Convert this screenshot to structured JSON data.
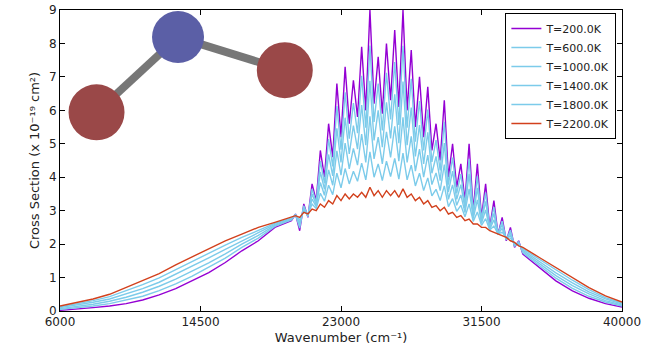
{
  "chart_data": {
    "type": "line",
    "x_label": "Wavenumber (cm⁻¹)",
    "y_label": "Cross Section (x 10⁻¹⁹ cm²)",
    "x": [
      6000,
      7000,
      8000,
      9000,
      10000,
      11000,
      12000,
      13000,
      14000,
      15000,
      16000,
      17000,
      18000,
      19000,
      20000,
      20250,
      20500,
      20750,
      21000,
      21250,
      21500,
      21750,
      22000,
      22250,
      22500,
      22750,
      23000,
      23250,
      23500,
      23750,
      24000,
      24250,
      24500,
      24750,
      25000,
      25250,
      25500,
      25750,
      26000,
      26250,
      26500,
      26750,
      27000,
      27250,
      27500,
      27750,
      28000,
      28250,
      28500,
      28750,
      29000,
      29250,
      29500,
      29750,
      30000,
      30250,
      30500,
      30750,
      31000,
      31250,
      31500,
      31750,
      32000,
      32250,
      32500,
      32750,
      33000,
      33250,
      33500,
      33750,
      34000,
      35000,
      36000,
      37000,
      38000,
      39000,
      40000
    ],
    "series": [
      {
        "name": "T=200.0K",
        "color": "#9400d3",
        "values": [
          0.02,
          0.05,
          0.1,
          0.15,
          0.22,
          0.33,
          0.48,
          0.67,
          0.9,
          1.15,
          1.45,
          1.8,
          2.1,
          2.5,
          2.7,
          2.9,
          2.4,
          3.2,
          2.8,
          3.8,
          3.3,
          4.8,
          4.0,
          5.6,
          4.6,
          6.8,
          5.2,
          7.3,
          5.6,
          6.9,
          5.8,
          7.9,
          6.0,
          9.0,
          6.2,
          7.6,
          5.9,
          8.0,
          6.3,
          8.4,
          6.1,
          9.0,
          6.0,
          7.8,
          5.5,
          7.0,
          5.2,
          6.7,
          4.8,
          5.6,
          4.5,
          6.3,
          4.0,
          5.0,
          3.7,
          4.4,
          3.3,
          5.0,
          3.0,
          4.4,
          2.8,
          3.8,
          2.5,
          3.3,
          2.3,
          2.8,
          2.1,
          2.5,
          1.9,
          2.1,
          1.7,
          1.3,
          0.9,
          0.6,
          0.38,
          0.22,
          0.12
        ]
      },
      {
        "name": "T=600.0K",
        "color": "#7ccbea",
        "values": [
          0.05,
          0.09,
          0.15,
          0.22,
          0.32,
          0.44,
          0.61,
          0.81,
          1.04,
          1.3,
          1.58,
          1.9,
          2.18,
          2.53,
          2.72,
          2.89,
          2.48,
          3.15,
          2.82,
          3.65,
          3.24,
          4.48,
          3.82,
          5.14,
          4.32,
          6.13,
          4.82,
          6.54,
          5.15,
          6.22,
          5.32,
          7.03,
          5.48,
          7.94,
          5.65,
          6.8,
          5.4,
          7.12,
          5.73,
          7.44,
          5.56,
          7.93,
          5.48,
          6.94,
          5.06,
          6.28,
          4.8,
          6.02,
          4.46,
          5.11,
          4.2,
          5.66,
          3.78,
          4.59,
          3.52,
          4.09,
          3.18,
          4.55,
          2.92,
          4.04,
          2.74,
          3.54,
          2.48,
          3.11,
          2.3,
          2.69,
          2.12,
          2.42,
          1.93,
          2.07,
          1.74,
          1.36,
          0.98,
          0.68,
          0.44,
          0.27,
          0.15
        ]
      },
      {
        "name": "T=1000.0K",
        "color": "#7ccbea",
        "values": [
          0.07,
          0.13,
          0.2,
          0.29,
          0.41,
          0.56,
          0.74,
          0.95,
          1.19,
          1.44,
          1.71,
          2.0,
          2.26,
          2.56,
          2.74,
          2.88,
          2.56,
          3.1,
          2.84,
          3.5,
          3.18,
          4.16,
          3.64,
          4.68,
          4.04,
          5.46,
          4.44,
          5.78,
          4.7,
          5.54,
          4.84,
          6.16,
          4.96,
          6.88,
          5.1,
          6.0,
          4.9,
          6.24,
          5.16,
          6.48,
          5.02,
          6.86,
          4.96,
          6.08,
          4.62,
          5.56,
          4.4,
          5.34,
          4.12,
          4.62,
          3.9,
          5.02,
          3.56,
          4.18,
          3.34,
          3.78,
          3.06,
          4.1,
          2.84,
          3.68,
          2.68,
          3.28,
          2.46,
          2.92,
          2.3,
          2.58,
          2.14,
          2.34,
          1.96,
          2.04,
          1.78,
          1.42,
          1.06,
          0.76,
          0.51,
          0.31,
          0.18
        ]
      },
      {
        "name": "T=1400.0K",
        "color": "#7ccbea",
        "values": [
          0.1,
          0.17,
          0.26,
          0.36,
          0.51,
          0.67,
          0.86,
          1.1,
          1.33,
          1.59,
          1.84,
          2.1,
          2.34,
          2.59,
          2.76,
          2.87,
          2.64,
          3.05,
          2.86,
          3.35,
          3.12,
          3.84,
          3.46,
          4.22,
          3.76,
          4.79,
          4.06,
          5.02,
          4.25,
          4.86,
          4.36,
          5.29,
          4.44,
          5.82,
          4.55,
          5.2,
          4.4,
          5.36,
          4.59,
          5.52,
          4.48,
          5.79,
          4.44,
          5.22,
          4.18,
          4.84,
          4.0,
          4.66,
          3.78,
          4.13,
          3.6,
          4.38,
          3.34,
          3.77,
          3.16,
          3.47,
          2.94,
          3.65,
          2.76,
          3.32,
          2.62,
          3.02,
          2.44,
          2.73,
          2.3,
          2.47,
          2.16,
          2.26,
          1.99,
          2.01,
          1.82,
          1.48,
          1.14,
          0.84,
          0.57,
          0.36,
          0.21
        ]
      },
      {
        "name": "T=1800.0K",
        "color": "#7ccbea",
        "values": [
          0.12,
          0.21,
          0.31,
          0.43,
          0.6,
          0.79,
          0.99,
          1.24,
          1.48,
          1.73,
          1.97,
          2.2,
          2.42,
          2.62,
          2.78,
          2.86,
          2.72,
          3.0,
          2.88,
          3.2,
          3.06,
          3.52,
          3.28,
          3.76,
          3.48,
          4.12,
          3.68,
          4.26,
          3.8,
          4.18,
          3.88,
          4.42,
          3.92,
          4.76,
          4.0,
          4.4,
          3.9,
          4.48,
          4.02,
          4.56,
          3.94,
          4.72,
          3.92,
          4.36,
          3.74,
          4.12,
          3.6,
          3.98,
          3.44,
          3.64,
          3.3,
          3.74,
          3.12,
          3.36,
          2.98,
          3.16,
          2.82,
          3.2,
          2.68,
          2.96,
          2.56,
          2.76,
          2.42,
          2.54,
          2.3,
          2.36,
          2.18,
          2.18,
          2.02,
          1.98,
          1.86,
          1.54,
          1.22,
          0.92,
          0.64,
          0.4,
          0.24
        ]
      },
      {
        "name": "T=2200.0K",
        "color": "#d2401c",
        "values": [
          0.15,
          0.25,
          0.36,
          0.5,
          0.7,
          0.9,
          1.12,
          1.38,
          1.62,
          1.88,
          2.1,
          2.3,
          2.5,
          2.65,
          2.8,
          2.85,
          2.8,
          2.95,
          2.9,
          3.05,
          3.0,
          3.2,
          3.1,
          3.3,
          3.2,
          3.45,
          3.3,
          3.5,
          3.35,
          3.5,
          3.4,
          3.55,
          3.4,
          3.7,
          3.45,
          3.6,
          3.4,
          3.6,
          3.45,
          3.6,
          3.4,
          3.65,
          3.4,
          3.5,
          3.3,
          3.4,
          3.2,
          3.3,
          3.1,
          3.15,
          3.0,
          3.1,
          2.9,
          2.95,
          2.8,
          2.85,
          2.7,
          2.75,
          2.6,
          2.6,
          2.5,
          2.5,
          2.4,
          2.35,
          2.3,
          2.25,
          2.2,
          2.1,
          2.05,
          1.95,
          1.9,
          1.6,
          1.3,
          1.0,
          0.7,
          0.45,
          0.27
        ]
      }
    ],
    "xlim": [
      6000,
      40000
    ],
    "xticks": [
      6000,
      14500,
      23000,
      31500,
      40000
    ],
    "ylim": [
      0,
      9
    ],
    "yticks": [
      0,
      1,
      2,
      3,
      4,
      5,
      6,
      7,
      8,
      9
    ],
    "grid": false,
    "legend": "upper right"
  }
}
